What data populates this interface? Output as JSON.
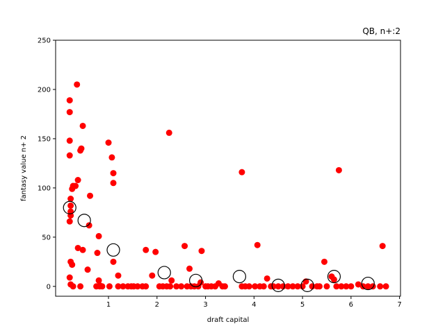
{
  "chart_data": {
    "type": "scatter",
    "title": "QB, n+:2",
    "xlabel": "draft capital",
    "ylabel": "fantasy value n+ 2",
    "xlim": [
      -0.09,
      7.02
    ],
    "ylim": [
      -10,
      250
    ],
    "xticks": [
      "1",
      "2",
      "3",
      "4",
      "5",
      "6",
      "7"
    ],
    "yticks": [
      "0",
      "50",
      "100",
      "150",
      "200",
      "250"
    ],
    "grid": false,
    "colors": {
      "points": "#ff0000",
      "bin_markers": "#000000"
    },
    "series": [
      {
        "marker": "filled-red-circle",
        "points": [
          [
            0.2,
            189
          ],
          [
            0.2,
            177
          ],
          [
            0.2,
            148
          ],
          [
            0.2,
            133
          ],
          [
            0.22,
            89
          ],
          [
            0.22,
            82
          ],
          [
            0.22,
            76
          ],
          [
            0.22,
            72
          ],
          [
            0.2,
            66
          ],
          [
            0.22,
            25
          ],
          [
            0.25,
            22
          ],
          [
            0.2,
            9
          ],
          [
            0.22,
            2
          ],
          [
            0.27,
            0
          ],
          [
            0.25,
            99
          ],
          [
            0.27,
            102
          ],
          [
            0.32,
            102
          ],
          [
            0.37,
            108
          ],
          [
            0.35,
            205
          ],
          [
            0.42,
            138
          ],
          [
            0.44,
            140
          ],
          [
            0.47,
            163
          ],
          [
            0.37,
            39
          ],
          [
            0.47,
            37
          ],
          [
            0.42,
            0
          ],
          [
            0.62,
            92
          ],
          [
            0.6,
            62
          ],
          [
            0.57,
            17
          ],
          [
            0.75,
            0
          ],
          [
            0.77,
            34
          ],
          [
            0.8,
            51
          ],
          [
            0.8,
            6
          ],
          [
            0.82,
            1
          ],
          [
            0.87,
            0
          ],
          [
            0.82,
            0
          ],
          [
            1.0,
            146
          ],
          [
            1.07,
            131
          ],
          [
            1.1,
            115
          ],
          [
            1.1,
            105
          ],
          [
            1.1,
            25
          ],
          [
            1.2,
            11
          ],
          [
            1.02,
            0
          ],
          [
            1.2,
            0
          ],
          [
            1.3,
            0
          ],
          [
            1.4,
            0
          ],
          [
            1.47,
            0
          ],
          [
            1.52,
            0
          ],
          [
            1.6,
            0
          ],
          [
            1.7,
            0
          ],
          [
            1.77,
            0
          ],
          [
            1.77,
            37
          ],
          [
            1.9,
            11
          ],
          [
            1.97,
            35
          ],
          [
            2.05,
            0
          ],
          [
            2.12,
            0
          ],
          [
            2.2,
            0
          ],
          [
            2.27,
            0
          ],
          [
            2.25,
            156
          ],
          [
            2.3,
            6
          ],
          [
            2.4,
            0
          ],
          [
            2.5,
            0
          ],
          [
            2.57,
            41
          ],
          [
            2.62,
            0
          ],
          [
            2.67,
            18
          ],
          [
            2.7,
            0
          ],
          [
            2.77,
            0
          ],
          [
            2.85,
            0
          ],
          [
            2.9,
            4
          ],
          [
            2.92,
            36
          ],
          [
            3.0,
            0
          ],
          [
            3.05,
            0
          ],
          [
            3.12,
            0
          ],
          [
            3.2,
            0
          ],
          [
            3.27,
            3
          ],
          [
            3.35,
            0
          ],
          [
            3.4,
            0
          ],
          [
            3.75,
            116
          ],
          [
            3.75,
            0
          ],
          [
            3.82,
            0
          ],
          [
            3.9,
            0
          ],
          [
            4.02,
            0
          ],
          [
            4.07,
            42
          ],
          [
            4.12,
            0
          ],
          [
            4.2,
            0
          ],
          [
            4.27,
            8
          ],
          [
            4.35,
            0
          ],
          [
            4.4,
            0
          ],
          [
            4.5,
            0
          ],
          [
            4.6,
            0
          ],
          [
            4.7,
            0
          ],
          [
            4.8,
            0
          ],
          [
            4.9,
            0
          ],
          [
            5.0,
            0
          ],
          [
            5.07,
            5
          ],
          [
            5.2,
            0
          ],
          [
            5.3,
            0
          ],
          [
            5.35,
            0
          ],
          [
            5.45,
            25
          ],
          [
            5.5,
            0
          ],
          [
            5.6,
            10
          ],
          [
            5.65,
            7
          ],
          [
            5.7,
            0
          ],
          [
            5.75,
            118
          ],
          [
            5.8,
            0
          ],
          [
            5.9,
            0
          ],
          [
            6.0,
            0
          ],
          [
            6.15,
            2
          ],
          [
            6.25,
            0
          ],
          [
            6.35,
            0
          ],
          [
            6.45,
            0
          ],
          [
            6.6,
            0
          ],
          [
            6.65,
            41
          ],
          [
            6.72,
            0
          ]
        ]
      },
      {
        "marker": "open-black-circle",
        "points": [
          [
            0.2,
            80
          ],
          [
            0.5,
            67
          ],
          [
            1.1,
            37
          ],
          [
            2.15,
            14
          ],
          [
            2.8,
            6
          ],
          [
            3.7,
            10
          ],
          [
            4.5,
            1
          ],
          [
            5.1,
            1
          ],
          [
            5.65,
            10
          ],
          [
            6.35,
            3
          ]
        ]
      }
    ]
  }
}
